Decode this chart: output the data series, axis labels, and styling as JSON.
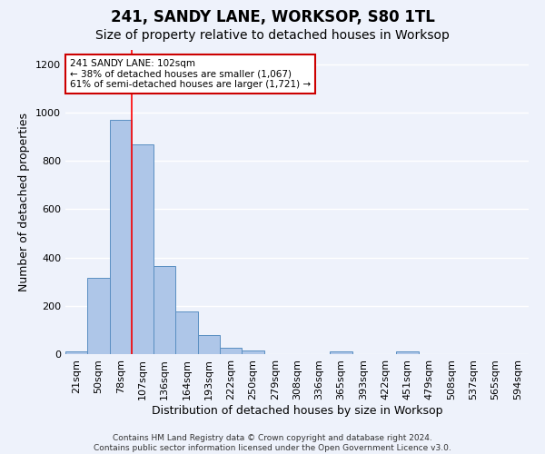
{
  "title": "241, SANDY LANE, WORKSOP, S80 1TL",
  "subtitle": "Size of property relative to detached houses in Worksop",
  "xlabel": "Distribution of detached houses by size in Worksop",
  "ylabel": "Number of detached properties",
  "bin_labels": [
    "21sqm",
    "50sqm",
    "78sqm",
    "107sqm",
    "136sqm",
    "164sqm",
    "193sqm",
    "222sqm",
    "250sqm",
    "279sqm",
    "308sqm",
    "336sqm",
    "365sqm",
    "393sqm",
    "422sqm",
    "451sqm",
    "479sqm",
    "508sqm",
    "537sqm",
    "565sqm",
    "594sqm"
  ],
  "bar_values": [
    13,
    315,
    970,
    870,
    365,
    178,
    80,
    25,
    15,
    0,
    0,
    0,
    13,
    0,
    0,
    13,
    0,
    0,
    0,
    0,
    0
  ],
  "bar_color": "#aec6e8",
  "bar_edge_color": "#5a8fc2",
  "bar_width": 1.0,
  "red_line_x": 2.5,
  "ylim": [
    0,
    1260
  ],
  "yticks": [
    0,
    200,
    400,
    600,
    800,
    1000,
    1200
  ],
  "annotation_text": "241 SANDY LANE: 102sqm\n← 38% of detached houses are smaller (1,067)\n61% of semi-detached houses are larger (1,721) →",
  "annotation_box_color": "#ffffff",
  "annotation_box_edge": "#cc0000",
  "footer": "Contains HM Land Registry data © Crown copyright and database right 2024.\nContains public sector information licensed under the Open Government Licence v3.0.",
  "background_color": "#eef2fb",
  "grid_color": "#ffffff",
  "title_fontsize": 12,
  "subtitle_fontsize": 10,
  "axis_label_fontsize": 9,
  "tick_fontsize": 8,
  "footer_fontsize": 6.5
}
